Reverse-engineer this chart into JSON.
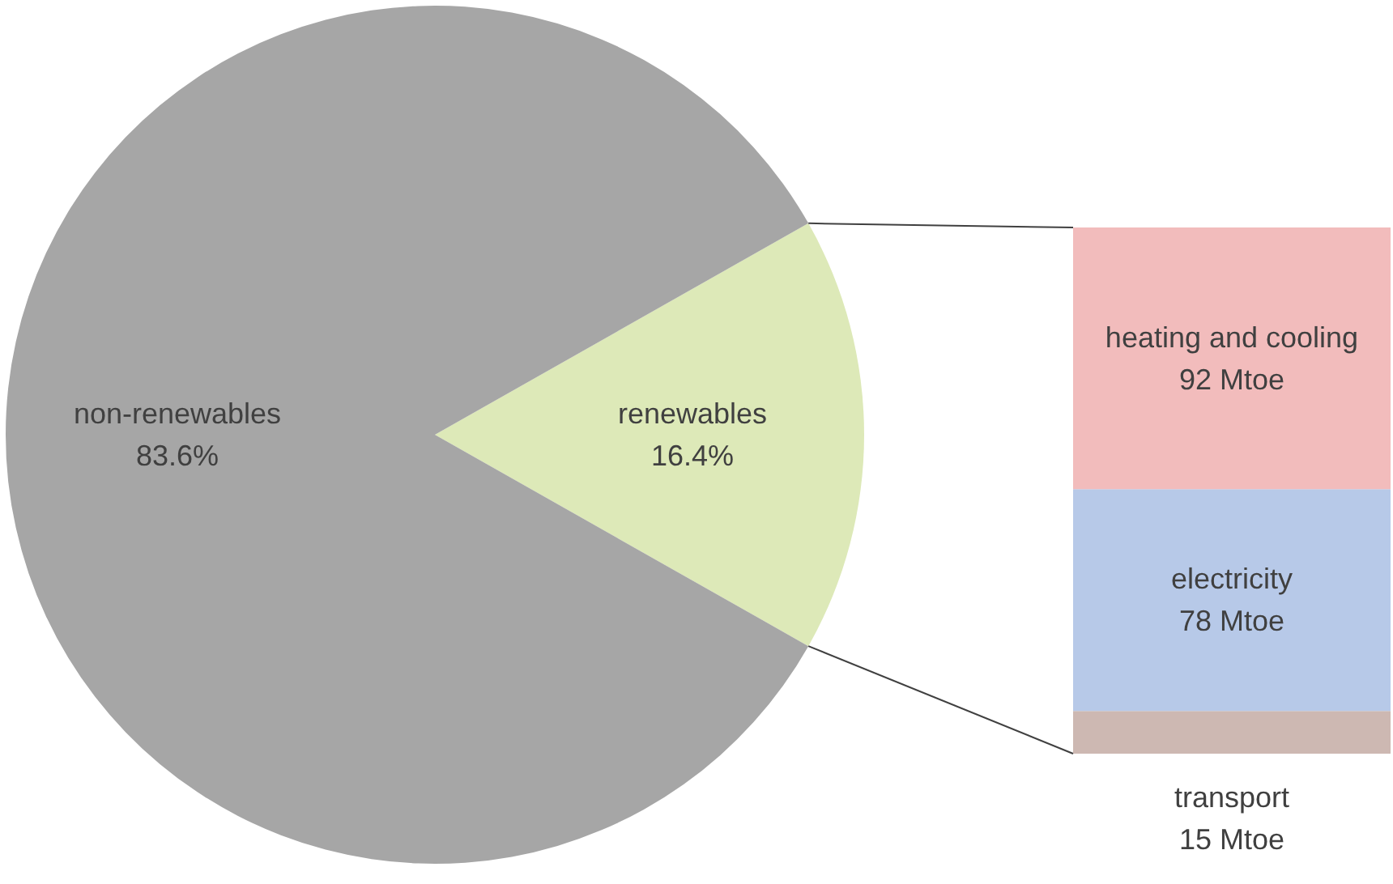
{
  "chart_data": [
    {
      "type": "pie",
      "categories": [
        "non-renewables",
        "renewables"
      ],
      "values": [
        83.6,
        16.4
      ],
      "colors": [
        "#a6a6a6",
        "#dde9b8"
      ],
      "value_labels": [
        "83.6%",
        "16.4%"
      ]
    },
    {
      "type": "bar",
      "stacked": true,
      "categories": [
        null
      ],
      "series": [
        {
          "name": "transport",
          "color": "#cdb8b2",
          "values": [
            15
          ],
          "value_labels": [
            "15 Mtoe"
          ]
        },
        {
          "name": "electricity",
          "color": "#b7c9e8",
          "values": [
            78
          ],
          "value_labels": [
            "78 Mtoe"
          ]
        },
        {
          "name": "heating and cooling",
          "color": "#f2bcbc",
          "values": [
            92
          ],
          "value_labels": [
            "92 Mtoe"
          ]
        }
      ]
    }
  ]
}
